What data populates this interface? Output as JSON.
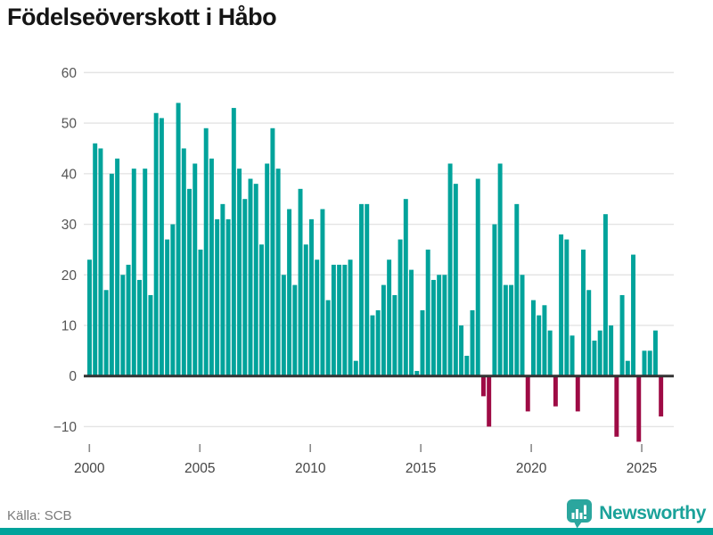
{
  "title": "Födelseöverskott i Håbo",
  "source": {
    "label": "Källa: SCB"
  },
  "brand": {
    "name": "Newsworthy"
  },
  "colors": {
    "positive": "#00A39B",
    "negative": "#9E0B45",
    "logo_teal": "#2BA69E",
    "bottom_strip": "#00A39B",
    "gridline": "#e4e4e4",
    "zero_line": "#333333"
  },
  "chart_data": {
    "type": "bar",
    "title": "Födelseöverskott i Håbo",
    "frequency": "quarterly",
    "start_period": "2000-Q1",
    "end_period": "2025-Q4",
    "values": [
      23,
      46,
      45,
      17,
      40,
      43,
      20,
      22,
      41,
      19,
      41,
      16,
      52,
      51,
      27,
      30,
      54,
      45,
      37,
      42,
      25,
      49,
      43,
      31,
      34,
      31,
      53,
      41,
      35,
      39,
      38,
      26,
      42,
      49,
      41,
      20,
      33,
      18,
      37,
      26,
      31,
      23,
      33,
      15,
      22,
      22,
      22,
      23,
      3,
      34,
      34,
      12,
      13,
      18,
      23,
      16,
      27,
      35,
      21,
      1,
      13,
      25,
      19,
      20,
      20,
      42,
      38,
      10,
      4,
      13,
      39,
      -4,
      -10,
      30,
      42,
      18,
      18,
      34,
      20,
      -7,
      15,
      12,
      14,
      9,
      -6,
      28,
      27,
      8,
      -7,
      25,
      17,
      7,
      9,
      32,
      10,
      -12,
      16,
      3,
      24,
      -13,
      5,
      5,
      9,
      -8
    ],
    "x_tick_labels": [
      "2000",
      "2005",
      "2010",
      "2015",
      "2020",
      "2025"
    ],
    "x_tick_years": [
      2000,
      2005,
      2010,
      2015,
      2020,
      2025
    ],
    "y_ticks": [
      60,
      50,
      40,
      30,
      20,
      10,
      0,
      -10
    ],
    "y_tick_labels": [
      "60",
      "50",
      "40",
      "30",
      "20",
      "10",
      "0",
      "−10"
    ],
    "ylim": [
      -14,
      62
    ],
    "grid": true,
    "legend": "none",
    "source": "Källa: SCB"
  }
}
